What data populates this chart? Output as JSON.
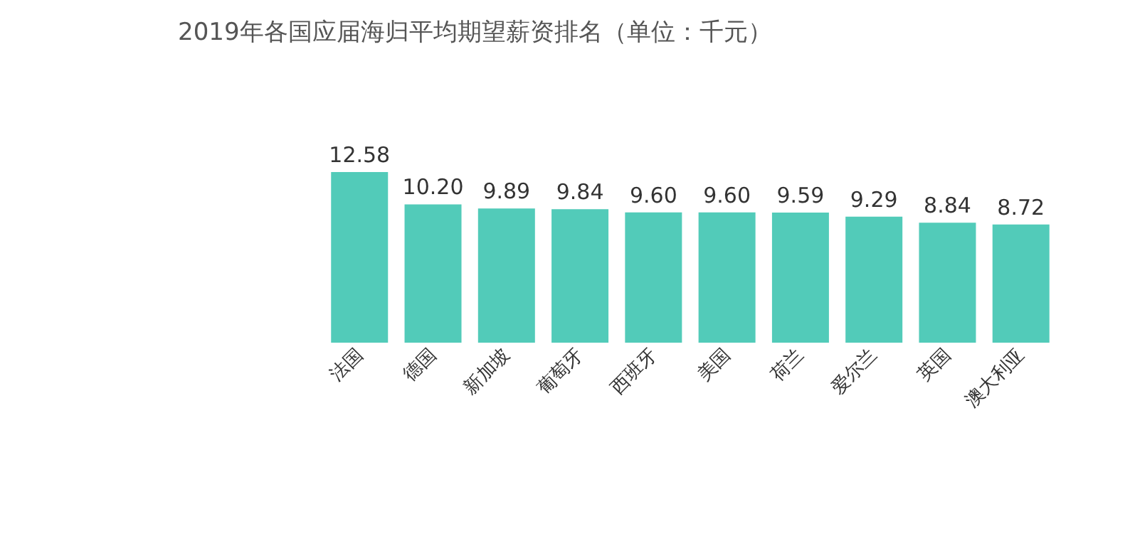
{
  "chart_data": {
    "type": "bar",
    "title": "2019年各国应届海归平均期望薪资排名（单位：千元）",
    "categories": [
      "法国",
      "德国",
      "新加坡",
      "葡萄牙",
      "西班牙",
      "美国",
      "荷兰",
      "爱尔兰",
      "英国",
      "澳大利亚"
    ],
    "values": [
      12.58,
      10.2,
      9.89,
      9.84,
      9.6,
      9.6,
      9.59,
      9.29,
      8.84,
      8.72
    ],
    "value_labels": [
      "12.58",
      "10.20",
      "9.89",
      "9.84",
      "9.60",
      "9.60",
      "9.59",
      "9.29",
      "8.84",
      "8.72"
    ],
    "color": "#52cbb9",
    "tick_labels": "x"
  }
}
